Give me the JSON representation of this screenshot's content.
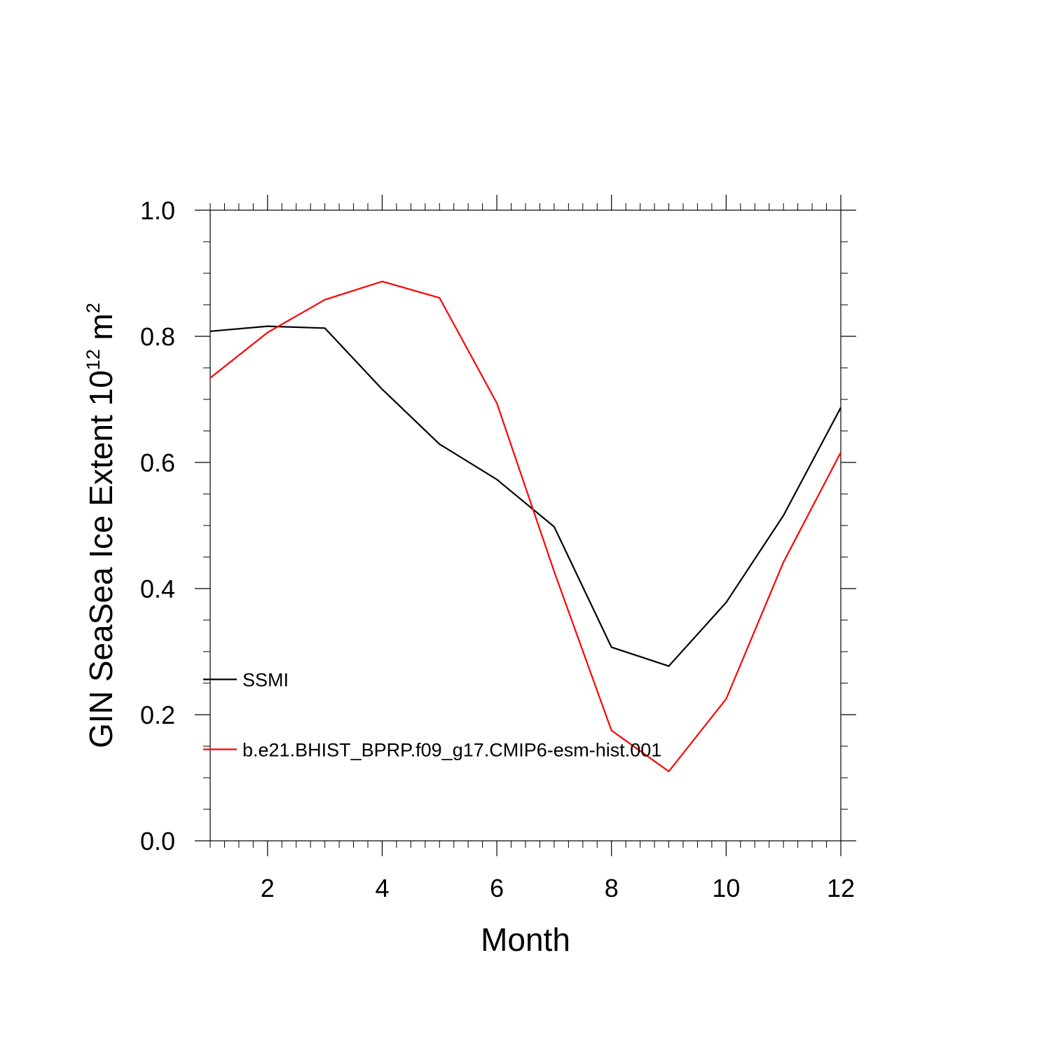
{
  "chart_data": {
    "type": "line",
    "xlabel": "Month",
    "ylabel": {
      "prefix": "GIN SeaSea Ice Extent 10",
      "exp1": "12",
      "unit": " m",
      "exp2": "2"
    },
    "xlim": [
      1,
      12
    ],
    "ylim": [
      0,
      1
    ],
    "x_ticks": [
      2,
      4,
      6,
      8,
      10,
      12
    ],
    "x_tick_labels": [
      "2",
      "4",
      "6",
      "8",
      "10",
      "12"
    ],
    "y_ticks": [
      0,
      0.2,
      0.4,
      0.6,
      0.8,
      1.0
    ],
    "y_tick_labels": [
      "0.0",
      "0.2",
      "0.4",
      "0.6",
      "0.8",
      "1.0"
    ],
    "grid": false,
    "legend_position": "left",
    "x": [
      1,
      2,
      3,
      4,
      5,
      6,
      7,
      8,
      9,
      10,
      11,
      12
    ],
    "series": [
      {
        "name": "SSMI",
        "color": "#000000",
        "values": [
          0.808,
          0.816,
          0.813,
          0.716,
          0.629,
          0.573,
          0.498,
          0.307,
          0.277,
          0.378,
          0.516,
          0.687
        ]
      },
      {
        "name": "b.e21.BHIST_BPRP.f09_g17.CMIP6-esm-hist.001",
        "color": "#ff0000",
        "values": [
          0.734,
          0.806,
          0.858,
          0.887,
          0.861,
          0.694,
          0.427,
          0.175,
          0.11,
          0.225,
          0.442,
          0.616
        ]
      }
    ]
  }
}
